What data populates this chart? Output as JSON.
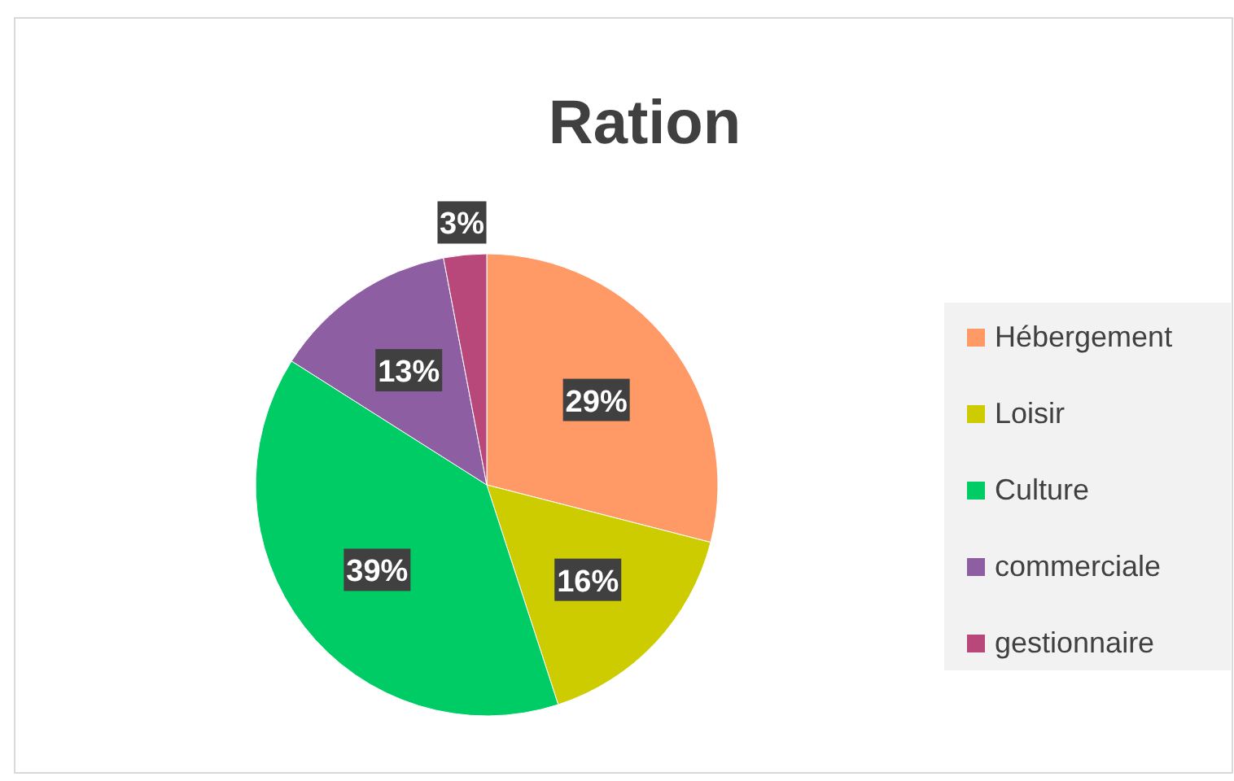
{
  "chart_data": {
    "type": "pie",
    "title": "Ration",
    "categories": [
      "Hébergement",
      "Loisir",
      "Culture",
      "commerciale",
      "gestionnaire"
    ],
    "values": [
      29,
      16,
      39,
      13,
      3
    ],
    "colors": [
      "#ff9966",
      "#cccc00",
      "#00cc66",
      "#8e5ea2",
      "#b8477a"
    ],
    "value_labels": [
      "29%",
      "16%",
      "39%",
      "13%",
      "3%"
    ],
    "legend": "right"
  }
}
